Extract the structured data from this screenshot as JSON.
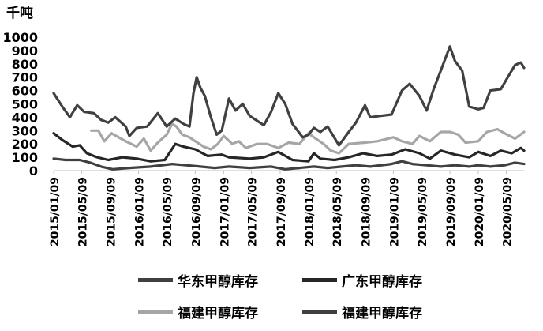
{
  "chart_data": {
    "type": "line",
    "unit_label": "千吨",
    "x_start": "2015/01/09",
    "x_end": "2020/07/24",
    "xticks": [
      "2015/01/09",
      "2015/05/09",
      "2015/09/09",
      "2016/01/09",
      "2016/05/09",
      "2016/09/09",
      "2017/01/09",
      "2017/05/09",
      "2017/09/09",
      "2018/01/09",
      "2018/05/09",
      "2018/09/09",
      "2019/01/09",
      "2019/05/09",
      "2019/09/09",
      "2020/01/09",
      "2020/05/09"
    ],
    "yticks": [
      0,
      100,
      200,
      300,
      400,
      500,
      600,
      700,
      800,
      900,
      1000
    ],
    "ylim": [
      0,
      1000
    ],
    "grid": false,
    "legend_position": "bottom",
    "series": [
      {
        "name": "华东甲醇库存",
        "color": "#404040",
        "points": [
          [
            "2015/01/09",
            580
          ],
          [
            "2015/02/15",
            480
          ],
          [
            "2015/03/20",
            400
          ],
          [
            "2015/04/20",
            490
          ],
          [
            "2015/05/20",
            440
          ],
          [
            "2015/07/01",
            430
          ],
          [
            "2015/08/01",
            380
          ],
          [
            "2015/09/01",
            360
          ],
          [
            "2015/10/01",
            400
          ],
          [
            "2015/11/15",
            330
          ],
          [
            "2015/12/01",
            260
          ],
          [
            "2016/01/01",
            320
          ],
          [
            "2016/02/15",
            330
          ],
          [
            "2016/04/01",
            430
          ],
          [
            "2016/05/09",
            330
          ],
          [
            "2016/06/15",
            390
          ],
          [
            "2016/07/20",
            350
          ],
          [
            "2016/08/15",
            330
          ],
          [
            "2016/09/01",
            580
          ],
          [
            "2016/09/15",
            700
          ],
          [
            "2016/10/01",
            620
          ],
          [
            "2016/10/20",
            560
          ],
          [
            "2016/11/15",
            400
          ],
          [
            "2016/12/10",
            270
          ],
          [
            "2017/01/01",
            300
          ],
          [
            "2017/02/01",
            540
          ],
          [
            "2017/03/01",
            450
          ],
          [
            "2017/04/01",
            500
          ],
          [
            "2017/05/01",
            410
          ],
          [
            "2017/07/01",
            340
          ],
          [
            "2017/08/01",
            440
          ],
          [
            "2017/09/01",
            580
          ],
          [
            "2017/10/01",
            500
          ],
          [
            "2017/11/01",
            350
          ],
          [
            "2017/12/15",
            250
          ],
          [
            "2018/01/09",
            270
          ],
          [
            "2018/02/01",
            320
          ],
          [
            "2018/03/01",
            290
          ],
          [
            "2018/04/01",
            330
          ],
          [
            "2018/05/20",
            190
          ],
          [
            "2018/07/01",
            290
          ],
          [
            "2018/08/01",
            360
          ],
          [
            "2018/09/09",
            490
          ],
          [
            "2018/10/01",
            400
          ],
          [
            "2018/11/15",
            410
          ],
          [
            "2019/01/01",
            420
          ],
          [
            "2019/02/15",
            600
          ],
          [
            "2019/03/20",
            650
          ],
          [
            "2019/05/01",
            560
          ],
          [
            "2019/06/01",
            450
          ],
          [
            "2019/07/01",
            610
          ],
          [
            "2019/08/01",
            750
          ],
          [
            "2019/09/09",
            930
          ],
          [
            "2019/10/01",
            820
          ],
          [
            "2019/11/01",
            750
          ],
          [
            "2019/12/01",
            480
          ],
          [
            "2020/01/09",
            460
          ],
          [
            "2020/02/01",
            470
          ],
          [
            "2020/03/01",
            600
          ],
          [
            "2020/04/15",
            610
          ],
          [
            "2020/05/15",
            700
          ],
          [
            "2020/06/15",
            790
          ],
          [
            "2020/07/10",
            810
          ],
          [
            "2020/07/24",
            770
          ]
        ]
      },
      {
        "name": "广东甲醇库存",
        "color": "#262626",
        "points": [
          [
            "2015/01/09",
            280
          ],
          [
            "2015/02/15",
            230
          ],
          [
            "2015/04/01",
            180
          ],
          [
            "2015/05/01",
            190
          ],
          [
            "2015/06/01",
            130
          ],
          [
            "2015/07/15",
            100
          ],
          [
            "2015/09/01",
            80
          ],
          [
            "2015/11/01",
            100
          ],
          [
            "2016/01/01",
            90
          ],
          [
            "2016/03/01",
            70
          ],
          [
            "2016/05/01",
            80
          ],
          [
            "2016/06/15",
            200
          ],
          [
            "2016/07/20",
            180
          ],
          [
            "2016/09/09",
            160
          ],
          [
            "2016/11/01",
            110
          ],
          [
            "2017/01/01",
            120
          ],
          [
            "2017/02/01",
            100
          ],
          [
            "2017/05/01",
            90
          ],
          [
            "2017/07/01",
            100
          ],
          [
            "2017/09/01",
            140
          ],
          [
            "2017/11/01",
            80
          ],
          [
            "2018/01/09",
            70
          ],
          [
            "2018/02/01",
            130
          ],
          [
            "2018/03/01",
            90
          ],
          [
            "2018/05/01",
            80
          ],
          [
            "2018/07/01",
            100
          ],
          [
            "2018/09/01",
            130
          ],
          [
            "2018/11/01",
            110
          ],
          [
            "2019/01/01",
            120
          ],
          [
            "2019/03/01",
            160
          ],
          [
            "2019/05/01",
            130
          ],
          [
            "2019/06/15",
            90
          ],
          [
            "2019/08/01",
            150
          ],
          [
            "2019/10/01",
            120
          ],
          [
            "2019/12/01",
            100
          ],
          [
            "2020/01/09",
            140
          ],
          [
            "2020/03/01",
            110
          ],
          [
            "2020/04/15",
            150
          ],
          [
            "2020/06/01",
            130
          ],
          [
            "2020/07/10",
            170
          ],
          [
            "2020/07/24",
            150
          ]
        ]
      },
      {
        "name": "福建甲醇库存",
        "color": "#a6a6a6",
        "points": [
          [
            "2015/06/20",
            300
          ],
          [
            "2015/07/20",
            300
          ],
          [
            "2015/08/15",
            220
          ],
          [
            "2015/09/15",
            280
          ],
          [
            "2015/10/15",
            250
          ],
          [
            "2015/11/15",
            220
          ],
          [
            "2016/01/01",
            180
          ],
          [
            "2016/02/01",
            240
          ],
          [
            "2016/03/01",
            150
          ],
          [
            "2016/04/01",
            210
          ],
          [
            "2016/05/09",
            270
          ],
          [
            "2016/06/01",
            350
          ],
          [
            "2016/06/20",
            330
          ],
          [
            "2016/07/15",
            270
          ],
          [
            "2016/08/15",
            250
          ],
          [
            "2016/09/09",
            220
          ],
          [
            "2016/10/15",
            180
          ],
          [
            "2016/11/15",
            160
          ],
          [
            "2016/12/15",
            200
          ],
          [
            "2017/01/09",
            260
          ],
          [
            "2017/02/15",
            200
          ],
          [
            "2017/03/15",
            220
          ],
          [
            "2017/04/15",
            170
          ],
          [
            "2017/06/01",
            200
          ],
          [
            "2017/07/15",
            200
          ],
          [
            "2017/09/01",
            170
          ],
          [
            "2017/10/15",
            210
          ],
          [
            "2017/12/01",
            200
          ],
          [
            "2018/01/09",
            280
          ],
          [
            "2018/02/01",
            250
          ],
          [
            "2018/03/15",
            200
          ],
          [
            "2018/04/15",
            150
          ],
          [
            "2018/05/20",
            130
          ],
          [
            "2018/07/01",
            200
          ],
          [
            "2018/09/09",
            210
          ],
          [
            "2018/11/01",
            220
          ],
          [
            "2019/01/09",
            250
          ],
          [
            "2019/02/15",
            220
          ],
          [
            "2019/04/01",
            200
          ],
          [
            "2019/05/01",
            260
          ],
          [
            "2019/06/15",
            220
          ],
          [
            "2019/08/01",
            290
          ],
          [
            "2019/09/09",
            290
          ],
          [
            "2019/10/15",
            270
          ],
          [
            "2019/11/15",
            210
          ],
          [
            "2020/01/09",
            220
          ],
          [
            "2020/02/15",
            290
          ],
          [
            "2020/04/01",
            310
          ],
          [
            "2020/05/01",
            280
          ],
          [
            "2020/06/15",
            240
          ],
          [
            "2020/07/24",
            290
          ]
        ]
      },
      {
        "name": "福建甲醇库存",
        "color": "#404040",
        "points": [
          [
            "2015/01/09",
            90
          ],
          [
            "2015/03/01",
            80
          ],
          [
            "2015/05/01",
            80
          ],
          [
            "2015/06/15",
            60
          ],
          [
            "2015/08/01",
            30
          ],
          [
            "2015/09/20",
            10
          ],
          [
            "2015/12/01",
            20
          ],
          [
            "2016/03/01",
            30
          ],
          [
            "2016/06/01",
            50
          ],
          [
            "2016/08/01",
            40
          ],
          [
            "2016/10/01",
            30
          ],
          [
            "2016/12/01",
            20
          ],
          [
            "2017/02/01",
            30
          ],
          [
            "2017/05/01",
            20
          ],
          [
            "2017/08/01",
            30
          ],
          [
            "2017/10/01",
            10
          ],
          [
            "2017/12/01",
            20
          ],
          [
            "2018/02/01",
            30
          ],
          [
            "2018/04/01",
            20
          ],
          [
            "2018/06/01",
            30
          ],
          [
            "2018/08/01",
            40
          ],
          [
            "2018/10/01",
            30
          ],
          [
            "2019/01/01",
            50
          ],
          [
            "2019/02/15",
            70
          ],
          [
            "2019/04/01",
            50
          ],
          [
            "2019/06/01",
            40
          ],
          [
            "2019/08/01",
            30
          ],
          [
            "2019/10/01",
            40
          ],
          [
            "2019/12/01",
            30
          ],
          [
            "2020/01/09",
            40
          ],
          [
            "2020/03/01",
            30
          ],
          [
            "2020/05/01",
            40
          ],
          [
            "2020/06/15",
            60
          ],
          [
            "2020/07/24",
            50
          ]
        ]
      }
    ]
  }
}
